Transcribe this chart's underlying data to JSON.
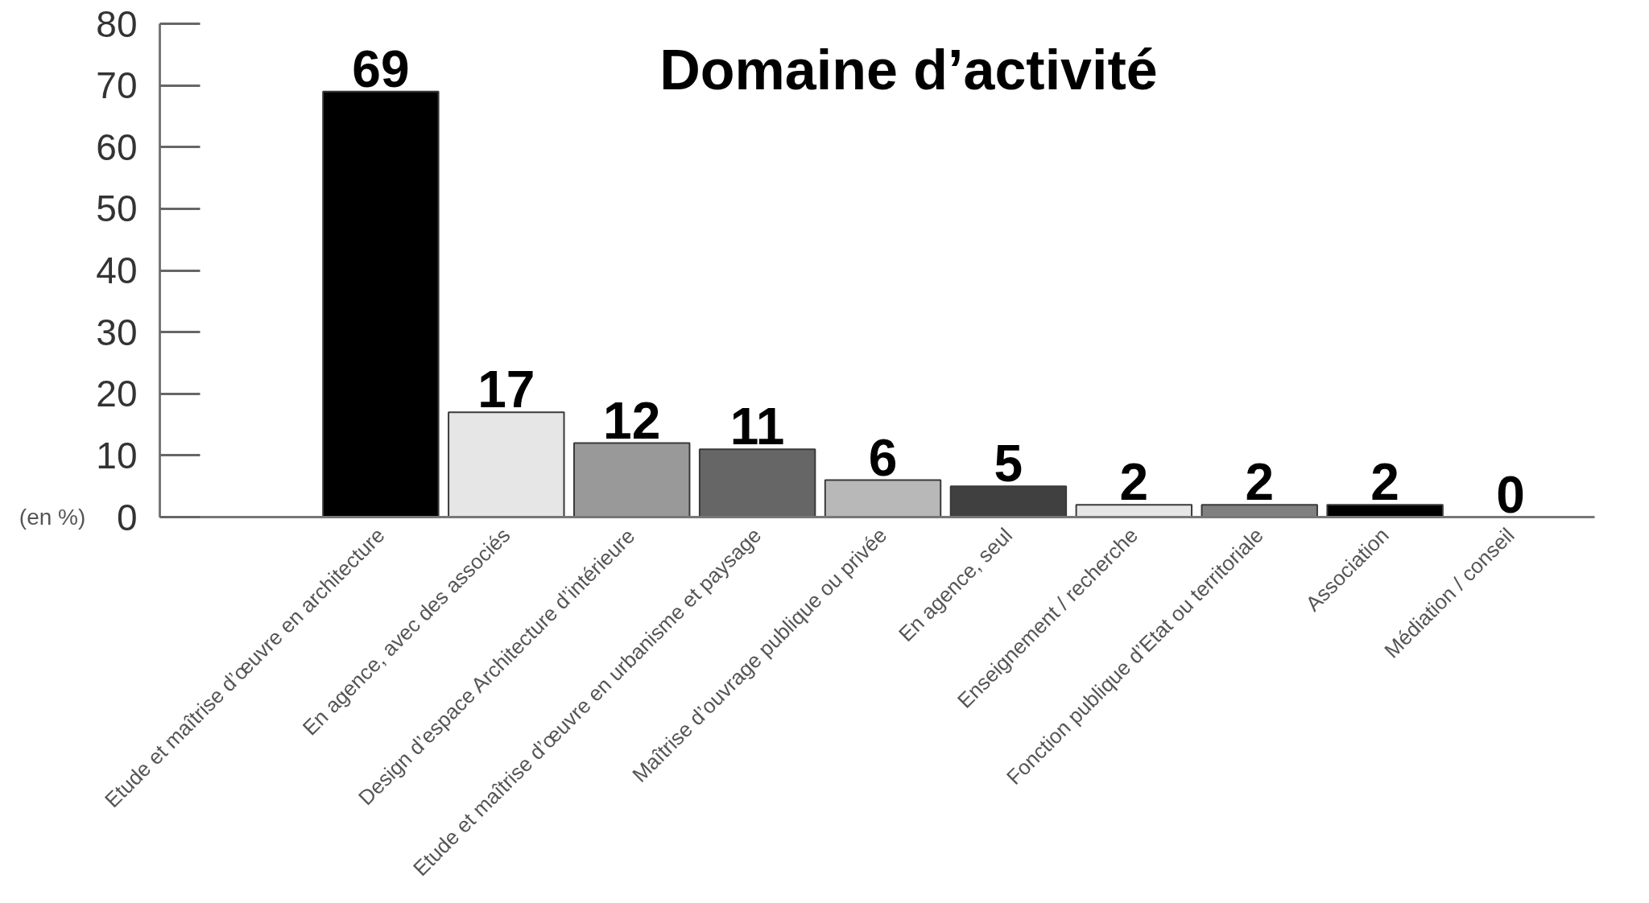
{
  "chart_data": {
    "type": "bar",
    "title": "Domaine d’activité",
    "ylabel": "(en %)",
    "categories": [
      "Etude et maîtrise d’œuvre en architecture",
      "En agence, avec des associés",
      "Design d’espace Architecture d’intérieure",
      "Etude et maîtrise d’œuvre en urbanisme et paysage",
      "Maîtrise d’ouvrage publique ou privée",
      "En agence, seul",
      "Enseignement / recherche",
      "Fonction publique d’Etat ou territoriale",
      "Association",
      "Médiation / conseil"
    ],
    "values": [
      69,
      17,
      12,
      11,
      6,
      5,
      2,
      2,
      2,
      0
    ],
    "colors": [
      "#000000",
      "#e6e6e6",
      "#999999",
      "#666666",
      "#b8b8b8",
      "#404040",
      "#e6e6e6",
      "#808080",
      "#000000",
      "#e6e6e6"
    ],
    "ylim": [
      0,
      80
    ],
    "yticks": [
      0,
      10,
      20,
      30,
      40,
      50,
      60,
      70,
      80
    ],
    "data_labels": true
  }
}
